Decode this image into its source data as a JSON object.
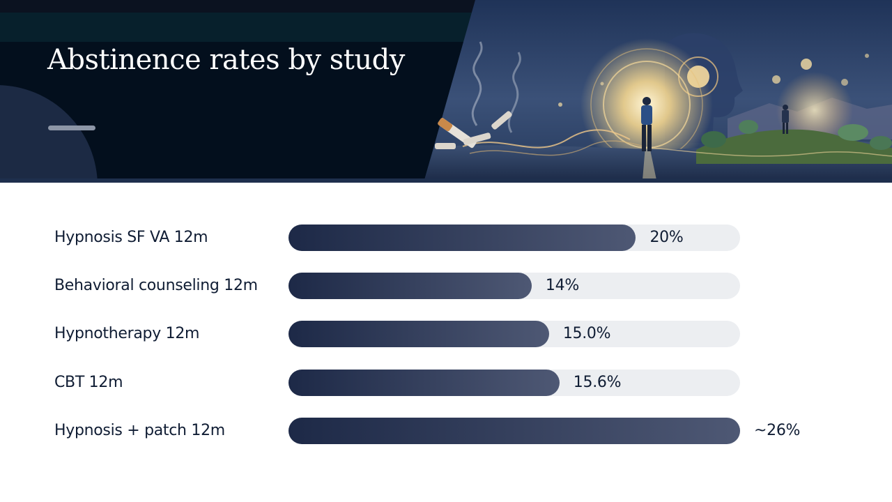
{
  "header": {
    "title": "Abstinence rates by study"
  },
  "chart_data": {
    "type": "bar",
    "orientation": "horizontal",
    "title": "Abstinence rates by study",
    "categories": [
      "Hypnosis SF VA 12m",
      "Behavioral counseling 12m",
      "Hypnotherapy 12m",
      "CBT 12m",
      "Hypnosis + patch 12m"
    ],
    "values": [
      20,
      14,
      15.0,
      15.6,
      26
    ],
    "value_labels": [
      "20%",
      "14%",
      "15.0%",
      "15.6%",
      "~26%"
    ],
    "xlim": [
      0,
      26
    ],
    "unit": "%",
    "colors": {
      "bar_start": "#1d2947",
      "bar_end": "#4e5874",
      "track": "#eceef1",
      "text": "#0f1c33"
    },
    "grid": false,
    "legend": "none"
  },
  "colors": {
    "header_bg": "#030f1d",
    "accent": "#8d96a7"
  }
}
